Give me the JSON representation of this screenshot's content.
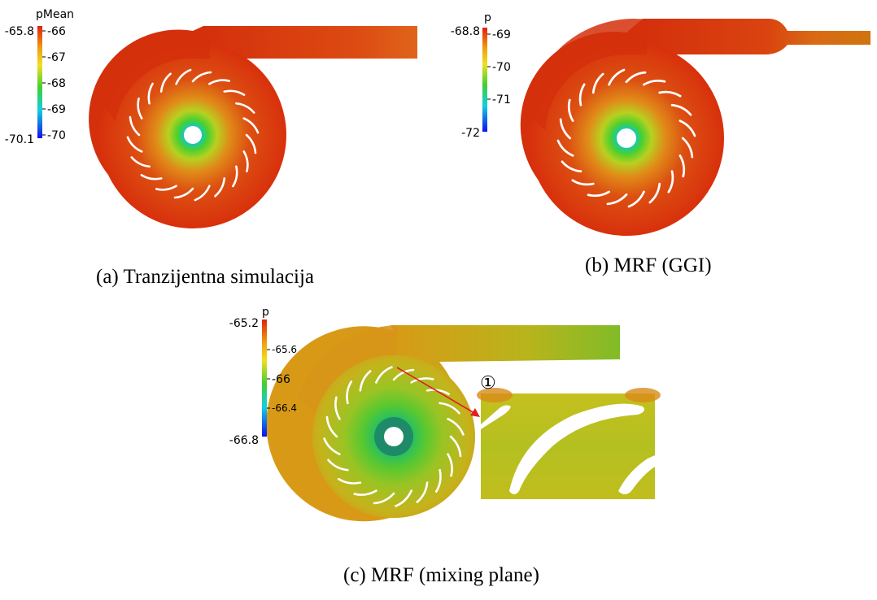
{
  "panels": [
    {
      "caption": "(a) Tranzijentna simulacija",
      "colorbar": {
        "title": "pMean",
        "max_label": "-65.8",
        "min_label": "-70.1",
        "ticks": [
          "-66",
          "-67",
          "-68",
          "-69",
          "-70"
        ]
      }
    },
    {
      "caption": "(b) MRF (GGI)",
      "colorbar": {
        "title": "p",
        "max_label": "-68.8",
        "min_label": "-72",
        "ticks": [
          "-69",
          "-70",
          "-71"
        ]
      }
    },
    {
      "caption": "(c) MRF (mixing plane)",
      "colorbar": {
        "title": "p",
        "max_label": "-65.2",
        "min_label": "-66.8",
        "ticks": [
          "-65.6",
          "-66",
          "-66.4"
        ]
      },
      "inset_label": "①"
    }
  ],
  "colors": {
    "map_high": "#d42a0c",
    "map_mid": "#3cc820",
    "map_low": "#1020e0",
    "blade": "#ffffff",
    "arrow": "#e02020"
  }
}
